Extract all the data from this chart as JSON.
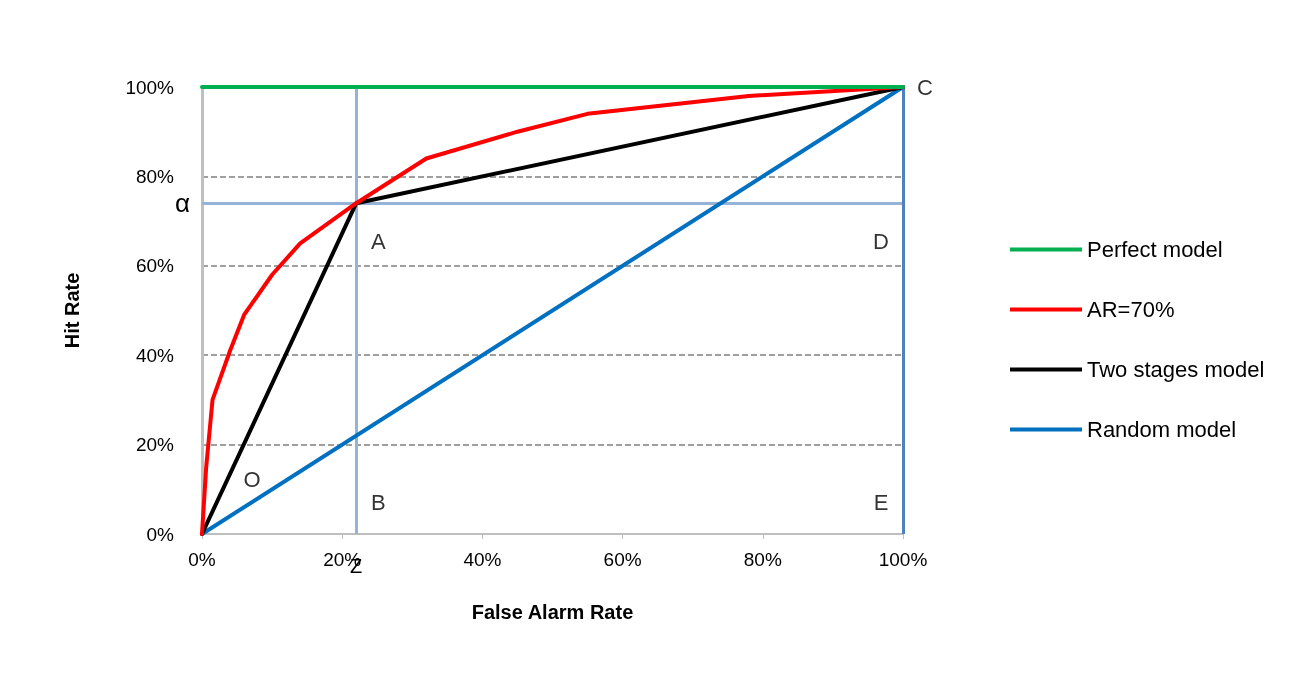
{
  "chart_data": {
    "type": "line",
    "xlabel": "False Alarm Rate",
    "ylabel": "Hit Rate",
    "xlim": [
      0,
      100
    ],
    "ylim": [
      0,
      100
    ],
    "xticks": [
      {
        "value": 0,
        "label": "0%"
      },
      {
        "value": 20,
        "label": "20%"
      },
      {
        "value": 40,
        "label": "40%"
      },
      {
        "value": 60,
        "label": "60%"
      },
      {
        "value": 80,
        "label": "80%"
      },
      {
        "value": 100,
        "label": "100%"
      }
    ],
    "yticks": [
      {
        "value": 0,
        "label": "0%"
      },
      {
        "value": 20,
        "label": "20%"
      },
      {
        "value": 40,
        "label": "40%"
      },
      {
        "value": 60,
        "label": "60%"
      },
      {
        "value": 80,
        "label": "80%"
      },
      {
        "value": 100,
        "label": "100%"
      }
    ],
    "grid": "y",
    "legend": "right",
    "marker": "none",
    "line_style": "solid",
    "series": [
      {
        "name": "Perfect model",
        "color": "#00b050",
        "x": [
          0,
          100
        ],
        "values": [
          100,
          100
        ]
      },
      {
        "name": "AR=70%",
        "color": "#ff0000",
        "x": [
          0,
          0.6,
          1.5,
          4,
          6,
          10,
          14,
          22,
          32,
          45,
          55,
          78,
          100
        ],
        "values": [
          0,
          15,
          30,
          41,
          49,
          58,
          65,
          74,
          84,
          90,
          94,
          98,
          100
        ]
      },
      {
        "name": "Two stages model",
        "color": "#000000",
        "x": [
          0,
          22,
          100
        ],
        "values": [
          0,
          74,
          100
        ]
      },
      {
        "name": "Random model",
        "color": "#0070c0",
        "x": [
          0,
          100
        ],
        "values": [
          0,
          100
        ]
      }
    ],
    "ref_lines": [
      {
        "axis": "y",
        "value": 74,
        "label": "α",
        "color": "#95b3d7"
      },
      {
        "axis": "x",
        "value": 22,
        "label": "Z",
        "color": "#95b3d7"
      },
      {
        "axis": "x",
        "value": 100,
        "label": null,
        "color": "#4f81bd"
      }
    ],
    "annotations": [
      {
        "text": "C",
        "x": 100,
        "y": 100
      },
      {
        "text": "A",
        "x": 22,
        "y": 74
      },
      {
        "text": "D",
        "x": 100,
        "y": 74
      },
      {
        "text": "O",
        "x": 0,
        "y": 0
      },
      {
        "text": "B",
        "x": 22,
        "y": 0
      },
      {
        "text": "E",
        "x": 100,
        "y": 0
      }
    ]
  }
}
